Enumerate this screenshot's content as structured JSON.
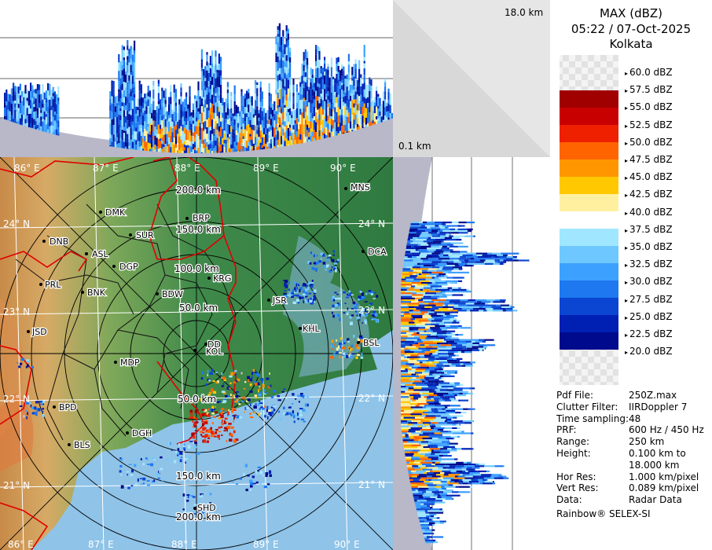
{
  "header": {
    "title": "MAX (dBZ)",
    "datetime": "05:22 / 07-Oct-2025",
    "station": "Kolkata"
  },
  "top_profile": {
    "top_label": "18.0 km",
    "bottom_label": "0.1 km"
  },
  "legend": {
    "entries": [
      {
        "label": "60.0 dBZ",
        "color": "#e8e8e8"
      },
      {
        "label": "57.5 dBZ",
        "color": "#ffffff"
      },
      {
        "label": "55.0 dBZ",
        "color": "#a00000"
      },
      {
        "label": "52.5 dBZ",
        "color": "#c80000"
      },
      {
        "label": "50.0 dBZ",
        "color": "#ee2000"
      },
      {
        "label": "47.5 dBZ",
        "color": "#ff6400"
      },
      {
        "label": "45.0 dBZ",
        "color": "#ff9600"
      },
      {
        "label": "42.5 dBZ",
        "color": "#ffc800"
      },
      {
        "label": "40.0 dBZ",
        "color": "#fff0a0"
      },
      {
        "label": "37.5 dBZ",
        "color": "#ffffff"
      },
      {
        "label": "35.0 dBZ",
        "color": "#a0e6ff"
      },
      {
        "label": "32.5 dBZ",
        "color": "#6ec8ff"
      },
      {
        "label": "30.0 dBZ",
        "color": "#3ca0ff"
      },
      {
        "label": "27.5 dBZ",
        "color": "#1e78f0"
      },
      {
        "label": "25.0 dBZ",
        "color": "#0a46d2"
      },
      {
        "label": "22.5 dBZ",
        "color": "#0020b4"
      },
      {
        "label": "20.0 dBZ",
        "color": "#000a8c"
      }
    ]
  },
  "info": [
    {
      "key": "Pdf File:",
      "value": "250Z.max"
    },
    {
      "key": "Clutter Filter:",
      "value": "IIRDoppler 7"
    },
    {
      "key": "Time sampling:",
      "value": "48"
    },
    {
      "key": "PRF:",
      "value": "600 Hz / 450 Hz"
    },
    {
      "key": "Range:",
      "value": "250 km"
    },
    {
      "key": "Height:",
      "value": "0.100 km to"
    },
    {
      "key": "",
      "value": "18.000 km"
    },
    {
      "key": "Hor Res:",
      "value": "1.000 km/pixel"
    },
    {
      "key": "Vert Res:",
      "value": "0.089 km/pixel"
    },
    {
      "key": "Data:",
      "value": "Radar Data"
    }
  ],
  "credit": "Rainbow® SELEX-SI",
  "map": {
    "lon_labels_top": [
      "86° E",
      "87° E",
      "88° E",
      "89° E",
      "90° E"
    ],
    "lon_labels_bottom": [
      "86° E",
      "87° E",
      "88° E",
      "89° E",
      "90° E"
    ],
    "lat_labels_left": [
      "24° N",
      "23° N",
      "22° N",
      "21° N"
    ],
    "lat_labels_right": [
      "24° N",
      "23° N",
      "22° N",
      "21° N"
    ],
    "range_labels": [
      "50.0 km",
      "100.0 km",
      "150.0 km",
      "200.0 km",
      "50.0 km",
      "150.0 km",
      "200.0 km"
    ],
    "cities": [
      "MNS",
      "DMK",
      "BRP",
      "DNB",
      "SUR",
      "ASL",
      "DGP",
      "DCA",
      "PRL",
      "BNK",
      "KRG",
      "BDW",
      "JSR",
      "KHL",
      "JSD",
      "DD",
      "KOL",
      "BSL",
      "MDP",
      "BPD",
      "DGH",
      "BLS",
      "SHD"
    ]
  }
}
